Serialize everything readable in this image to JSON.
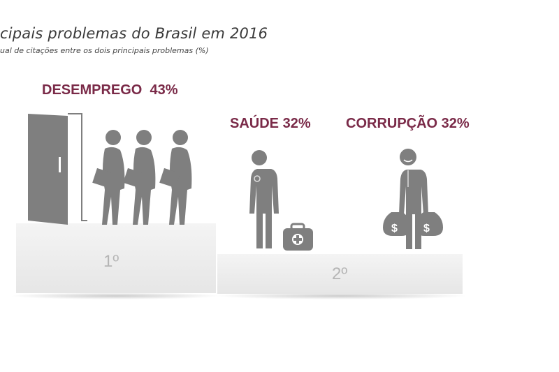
{
  "header": {
    "title": "cipais problemas do Brasil em 2016",
    "subtitle": "ual de citações entre os dois principais problemas (%)"
  },
  "colors": {
    "label": "#7a2a48",
    "icon": "#7f7f7f",
    "podium": "#ececec"
  },
  "chart_data": {
    "type": "bar",
    "style": "podium",
    "title": "cipais problemas do Brasil em 2016",
    "subtitle": "ual de citações entre os dois principais problemas (%)",
    "categories": [
      "DESEMPREGO",
      "SAÚDE",
      "CORRUPÇÃO"
    ],
    "values": [
      43,
      32,
      32
    ],
    "unit": "%",
    "ranks": [
      "1º",
      "2º",
      "2º"
    ],
    "labels": [
      "DESEMPREGO  43%",
      "SAÚDE 32%",
      "CORRUPÇÃO 32%"
    ],
    "icons": [
      "door-and-job-seekers-icon",
      "doctor-with-medical-kit-icon",
      "businessman-with-money-bags-icon"
    ],
    "podium_labels": [
      "1º",
      "2º"
    ]
  }
}
